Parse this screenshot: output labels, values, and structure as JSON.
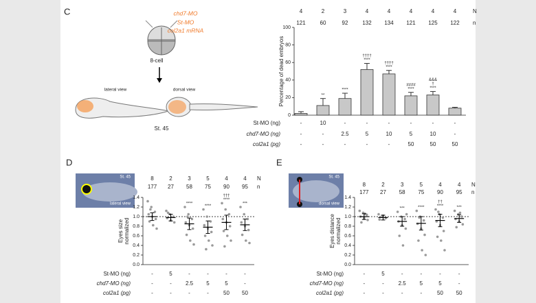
{
  "figure": {
    "panel_labels": [
      "C",
      "D",
      "E"
    ],
    "injection": [
      "chd7-MO",
      "St-MO",
      "col2a1 mRNA"
    ],
    "stage_start": "8-cell",
    "lateral": "lateral view",
    "dorsal": "dorsal view",
    "stage_end": "St. 45",
    "thumb_d": [
      "St. 45",
      "lateral view"
    ],
    "thumb_e": [
      "St. 45",
      "dorsal view"
    ]
  },
  "chart_data": [
    {
      "type": "bar",
      "ylabel": [
        "Percentage of dead embryos"
      ],
      "ylim": [
        0,
        100
      ],
      "yticks": [
        0,
        20,
        40,
        60,
        80,
        100
      ],
      "color": "#c8c8c8",
      "N": [
        4,
        2,
        3,
        4,
        4,
        4,
        4,
        4
      ],
      "N_label": "N",
      "n": [
        121,
        60,
        92,
        132,
        134,
        121,
        125,
        122
      ],
      "n_label": "n",
      "values": [
        2,
        11,
        19,
        52,
        47,
        22,
        23,
        8
      ],
      "errors": [
        2,
        8,
        6,
        7,
        4,
        4,
        4,
        1
      ],
      "significance": [
        [],
        [
          "**"
        ],
        [
          "****"
        ],
        [
          "††††",
          "****"
        ],
        [
          "††††",
          "****"
        ],
        [
          "####",
          "****"
        ],
        [
          "&&&",
          "†",
          "****"
        ],
        []
      ],
      "treatments": [
        {
          "label": "St-MO (ng)",
          "values": [
            "-",
            10,
            "-",
            "-",
            "-",
            "-",
            "-",
            "-"
          ]
        },
        {
          "label": "chd7-MO (ng)",
          "values": [
            "-",
            "-",
            2.5,
            5,
            10,
            5,
            10,
            "-"
          ]
        },
        {
          "label": "col2a1 (pg)",
          "values": [
            "-",
            "-",
            "-",
            "-",
            "-",
            50,
            50,
            50
          ]
        }
      ]
    },
    {
      "type": "dot",
      "ylabel": [
        "Eyes size",
        "normalized"
      ],
      "ylim": [
        0,
        1.4
      ],
      "yticks": [
        {
          "value": 0,
          "label": "0.0"
        },
        {
          "value": 0.2,
          "label": "0.2"
        },
        {
          "value": 0.4,
          "label": "0.4"
        },
        {
          "value": 0.6,
          "label": "0.6"
        },
        {
          "value": 0.8,
          "label": "0.8"
        },
        {
          "value": 1,
          "label": "1.0"
        },
        {
          "value": 1.2,
          "label": "1.2"
        },
        {
          "value": 1.4,
          "label": "1.4"
        }
      ],
      "refline": 1,
      "color": "#9a9a9a",
      "N": [
        8,
        2,
        3,
        5,
        4,
        4
      ],
      "N_label": "N",
      "n": [
        177,
        27,
        58,
        75,
        90,
        95
      ],
      "n_label": "n",
      "means": [
        1.0,
        0.98,
        0.85,
        0.78,
        0.88,
        0.83
      ],
      "sd": [
        0.08,
        0.07,
        0.12,
        0.13,
        0.15,
        0.12
      ],
      "points": [
        [
          1.32,
          1.2,
          1.1,
          1.05,
          1.0,
          0.95,
          0.9,
          0.82,
          0.75,
          1.15
        ],
        [
          1.12,
          1.05,
          1.0,
          0.97,
          0.92,
          0.88,
          1.08
        ],
        [
          1.2,
          1.05,
          0.95,
          0.88,
          0.82,
          0.75,
          0.62,
          0.5,
          0.42,
          1.0
        ],
        [
          1.15,
          1.0,
          0.9,
          0.82,
          0.75,
          0.68,
          0.6,
          0.5,
          0.4,
          0.32
        ],
        [
          1.28,
          1.15,
          1.05,
          0.95,
          0.88,
          0.8,
          0.7,
          0.6,
          0.5,
          0.38
        ],
        [
          1.2,
          1.05,
          0.95,
          0.88,
          0.8,
          0.72,
          0.62,
          0.5,
          0.45
        ]
      ],
      "significance": [
        [],
        [],
        [
          "****"
        ],
        [
          "****"
        ],
        [
          "†††",
          "****"
        ],
        [
          "***"
        ]
      ],
      "treatments": [
        {
          "label": "St-MO (ng)",
          "values": [
            "-",
            5,
            "-",
            "-",
            "-",
            "-"
          ]
        },
        {
          "label": "chd7-MO (ng)",
          "values": [
            "-",
            "-",
            2.5,
            5,
            5,
            "-"
          ]
        },
        {
          "label": "col2a1 (pg)",
          "values": [
            "-",
            "-",
            "-",
            "-",
            50,
            50
          ]
        }
      ]
    },
    {
      "type": "dot",
      "ylabel": [
        "Eyes distance",
        "normalized"
      ],
      "ylim": [
        0,
        1.4
      ],
      "yticks": [
        {
          "value": 0,
          "label": "0.0"
        },
        {
          "value": 0.2,
          "label": "0.2"
        },
        {
          "value": 0.4,
          "label": "0.4"
        },
        {
          "value": 0.6,
          "label": "0.6"
        },
        {
          "value": 0.8,
          "label": "0.8"
        },
        {
          "value": 1,
          "label": "1.0"
        },
        {
          "value": 1.2,
          "label": "1.2"
        },
        {
          "value": 1.4,
          "label": "1.4"
        }
      ],
      "refline": 1,
      "color": "#9a9a9a",
      "N": [
        8,
        2,
        3,
        5,
        4,
        4
      ],
      "N_label": "N",
      "n": [
        177,
        27,
        58,
        75,
        90,
        95
      ],
      "n_label": "n",
      "means": [
        1.0,
        0.98,
        0.9,
        0.86,
        0.92,
        0.96
      ],
      "sd": [
        0.06,
        0.05,
        0.1,
        0.14,
        0.13,
        0.08
      ],
      "points": [
        [
          1.12,
          1.08,
          1.04,
          1.0,
          0.97,
          0.93,
          0.88,
          1.06
        ],
        [
          1.05,
          1.0,
          0.97,
          0.94,
          1.02
        ],
        [
          1.1,
          1.0,
          0.95,
          0.9,
          0.82,
          0.75,
          0.6,
          0.4,
          1.05
        ],
        [
          1.12,
          1.0,
          0.92,
          0.85,
          0.75,
          0.62,
          0.5,
          0.3,
          0.2,
          0.98
        ],
        [
          1.15,
          1.05,
          0.98,
          0.9,
          0.82,
          0.7,
          0.58,
          0.5,
          0.3,
          1.1
        ],
        [
          1.12,
          1.05,
          1.0,
          0.95,
          0.9,
          0.84,
          0.78,
          1.08
        ]
      ],
      "significance": [
        [],
        [],
        [
          "***"
        ],
        [
          "****"
        ],
        [
          "††",
          "****"
        ],
        [
          "***"
        ]
      ],
      "treatments": [
        {
          "label": "St-MO (ng)",
          "values": [
            "-",
            5,
            "-",
            "-",
            "-",
            "-"
          ]
        },
        {
          "label": "chd7-MO (ng)",
          "values": [
            "-",
            "-",
            2.5,
            5,
            5,
            "-"
          ]
        },
        {
          "label": "col2a1 (pg)",
          "values": [
            "-",
            "-",
            "-",
            "-",
            50,
            50
          ]
        }
      ]
    }
  ]
}
